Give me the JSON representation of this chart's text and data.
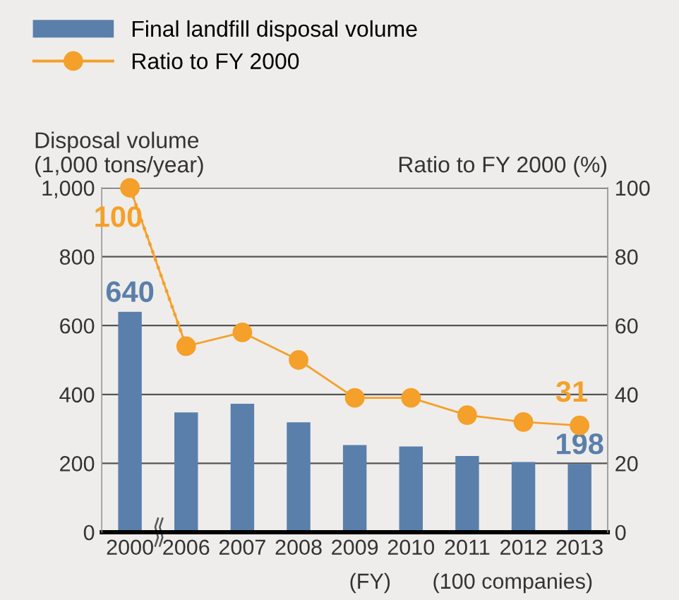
{
  "chart_data": {
    "type": "bar",
    "categories": [
      "2000",
      "2006",
      "2007",
      "2008",
      "2009",
      "2010",
      "2011",
      "2012",
      "2013"
    ],
    "ylabel": "Disposal volume\n(1,000 tons/year)",
    "y2label": "Ratio to FY 2000 (%)",
    "ylim": [
      0,
      1000
    ],
    "yticks": [
      0,
      200,
      400,
      600,
      800,
      {
        "value": 1000,
        "label": "1,000"
      }
    ],
    "y2lim": [
      0,
      100
    ],
    "y2ticks": [
      0,
      20,
      40,
      60,
      80,
      100
    ],
    "grid": "y",
    "legend": "top left",
    "annotations": [
      "(FY)",
      "(100 companies)"
    ],
    "series": [
      {
        "name": "Final landfill disposal volume",
        "color": "#5a7fab",
        "values": [
          640,
          348,
          373,
          319,
          253,
          249,
          221,
          204,
          198
        ],
        "value_labels": [
          "640",
          null,
          null,
          null,
          null,
          null,
          null,
          null,
          "198"
        ]
      },
      {
        "type": "line",
        "axis": "y2",
        "color": "#f5a02a",
        "line_style": "dotted",
        "marker": "none",
        "values": [
          100,
          54,
          null,
          null,
          null,
          null,
          null,
          null,
          null
        ]
      },
      {
        "name": "Ratio to FY 2000",
        "type": "line",
        "axis": "y2",
        "color": "#f5a02a",
        "line_style": "solid",
        "marker": "circle",
        "values": [
          100,
          54,
          58,
          50,
          39,
          39,
          34,
          32,
          31
        ],
        "value_labels": [
          "100",
          null,
          null,
          null,
          null,
          null,
          null,
          null,
          "31"
        ]
      }
    ]
  }
}
